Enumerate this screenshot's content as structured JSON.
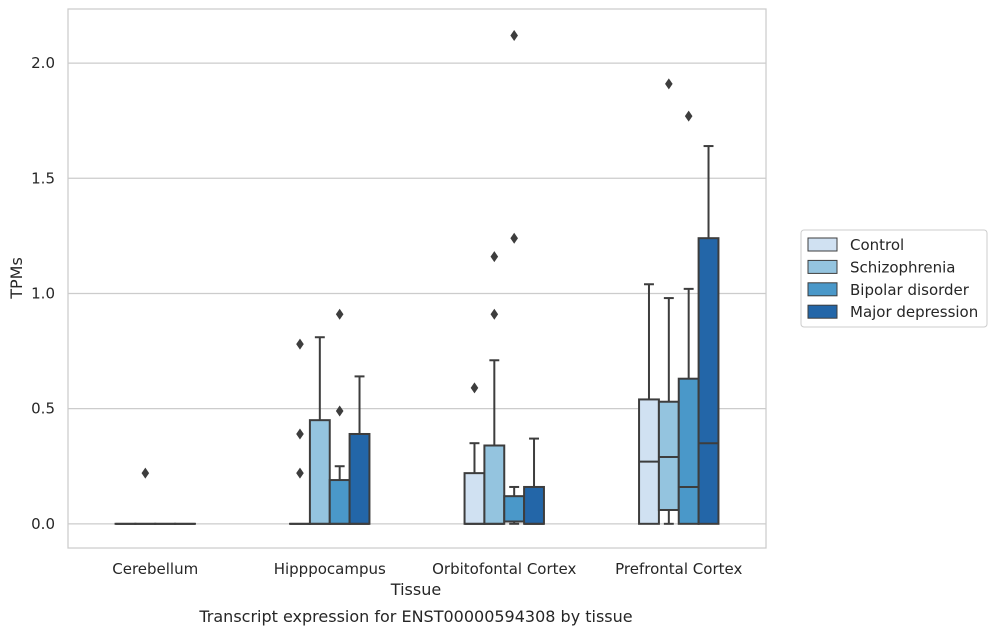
{
  "chart_data": {
    "type": "box",
    "xlabel": "Tissue",
    "ylabel": "TPMs",
    "caption": "Transcript expression for ENST00000594308 by tissue",
    "ylim": [
      -0.105,
      2.235
    ],
    "yticks": [
      0.0,
      0.5,
      1.0,
      1.5,
      2.0
    ],
    "ytick_labels": [
      "0.0",
      "0.5",
      "1.0",
      "1.5",
      "2.0"
    ],
    "grid": "horizontal",
    "legend_position": "right",
    "categories": [
      "Cerebellum",
      "Hipppocampus",
      "Orbitofontal Cortex",
      "Prefrontal Cortex"
    ],
    "series": [
      {
        "name": "Control",
        "color": "#d0e1f2",
        "boxes": [
          {
            "q1": 0,
            "median": 0,
            "q3": 0,
            "whisker_low": 0,
            "whisker_high": 0,
            "outliers": []
          },
          {
            "q1": 0,
            "median": 0,
            "q3": 0,
            "whisker_low": 0,
            "whisker_high": 0,
            "outliers": [
              0.22,
              0.39,
              0.78
            ]
          },
          {
            "q1": 0,
            "median": 0,
            "q3": 0.22,
            "whisker_low": 0,
            "whisker_high": 0.35,
            "outliers": [
              0.59
            ]
          },
          {
            "q1": 0,
            "median": 0.27,
            "q3": 0.54,
            "whisker_low": 0,
            "whisker_high": 1.04,
            "outliers": []
          }
        ]
      },
      {
        "name": "Schizophrenia",
        "color": "#94c4df",
        "boxes": [
          {
            "q1": 0,
            "median": 0,
            "q3": 0,
            "whisker_low": 0,
            "whisker_high": 0,
            "outliers": [
              0.22
            ]
          },
          {
            "q1": 0,
            "median": 0,
            "q3": 0.45,
            "whisker_low": 0,
            "whisker_high": 0.81,
            "outliers": []
          },
          {
            "q1": 0,
            "median": 0,
            "q3": 0.34,
            "whisker_low": 0,
            "whisker_high": 0.71,
            "outliers": [
              0.91,
              1.16
            ]
          },
          {
            "q1": 0.06,
            "median": 0.29,
            "q3": 0.53,
            "whisker_low": 0,
            "whisker_high": 0.98,
            "outliers": [
              1.91
            ]
          }
        ]
      },
      {
        "name": "Bipolar disorder",
        "color": "#4a98c9",
        "boxes": [
          {
            "q1": 0,
            "median": 0,
            "q3": 0,
            "whisker_low": 0,
            "whisker_high": 0,
            "outliers": []
          },
          {
            "q1": 0,
            "median": 0,
            "q3": 0.19,
            "whisker_low": 0,
            "whisker_high": 0.25,
            "outliers": [
              0.49,
              0.91
            ]
          },
          {
            "q1": 0.01,
            "median": 0.01,
            "q3": 0.12,
            "whisker_low": 0,
            "whisker_high": 0.16,
            "outliers": [
              1.24,
              2.12
            ]
          },
          {
            "q1": 0,
            "median": 0.16,
            "q3": 0.63,
            "whisker_low": 0,
            "whisker_high": 1.02,
            "outliers": [
              1.77
            ]
          }
        ]
      },
      {
        "name": "Major depression",
        "color": "#2366a8",
        "boxes": [
          {
            "q1": 0,
            "median": 0,
            "q3": 0,
            "whisker_low": 0,
            "whisker_high": 0,
            "outliers": []
          },
          {
            "q1": 0,
            "median": 0,
            "q3": 0.39,
            "whisker_low": 0,
            "whisker_high": 0.64,
            "outliers": []
          },
          {
            "q1": 0,
            "median": 0,
            "q3": 0.16,
            "whisker_low": 0,
            "whisker_high": 0.37,
            "outliers": []
          },
          {
            "q1": 0,
            "median": 0.35,
            "q3": 1.24,
            "whisker_low": 0,
            "whisker_high": 1.64,
            "outliers": []
          }
        ]
      }
    ]
  }
}
